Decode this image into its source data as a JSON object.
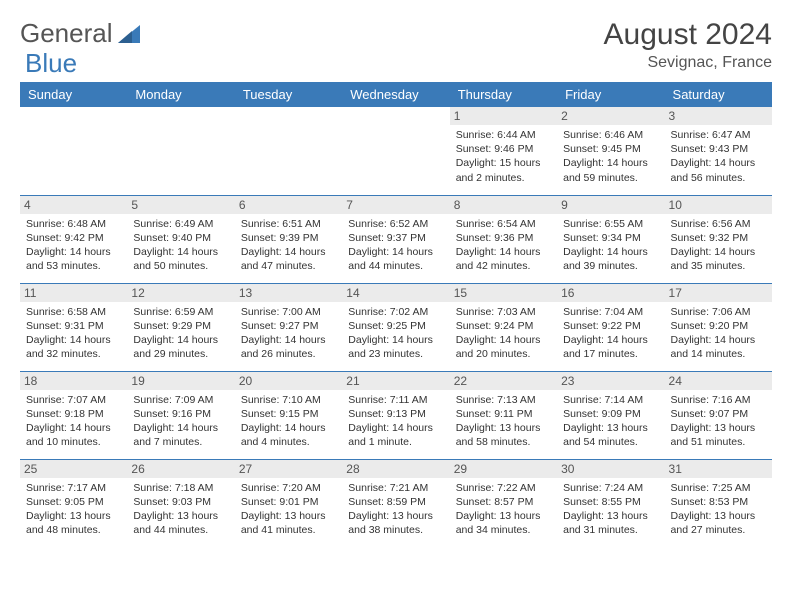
{
  "logo": {
    "text1": "General",
    "text2": "Blue"
  },
  "title": "August 2024",
  "location": "Sevignac, France",
  "colors": {
    "header_bg": "#3a7ab8",
    "header_text": "#ffffff",
    "daynum_bg": "#ebebeb",
    "border": "#3a7ab8",
    "title_color": "#444444",
    "body_text": "#333333"
  },
  "days": [
    "Sunday",
    "Monday",
    "Tuesday",
    "Wednesday",
    "Thursday",
    "Friday",
    "Saturday"
  ],
  "cells": [
    [
      null,
      null,
      null,
      null,
      {
        "n": "1",
        "sr": "6:44 AM",
        "ss": "9:46 PM",
        "dl": "15 hours and 2 minutes."
      },
      {
        "n": "2",
        "sr": "6:46 AM",
        "ss": "9:45 PM",
        "dl": "14 hours and 59 minutes."
      },
      {
        "n": "3",
        "sr": "6:47 AM",
        "ss": "9:43 PM",
        "dl": "14 hours and 56 minutes."
      }
    ],
    [
      {
        "n": "4",
        "sr": "6:48 AM",
        "ss": "9:42 PM",
        "dl": "14 hours and 53 minutes."
      },
      {
        "n": "5",
        "sr": "6:49 AM",
        "ss": "9:40 PM",
        "dl": "14 hours and 50 minutes."
      },
      {
        "n": "6",
        "sr": "6:51 AM",
        "ss": "9:39 PM",
        "dl": "14 hours and 47 minutes."
      },
      {
        "n": "7",
        "sr": "6:52 AM",
        "ss": "9:37 PM",
        "dl": "14 hours and 44 minutes."
      },
      {
        "n": "8",
        "sr": "6:54 AM",
        "ss": "9:36 PM",
        "dl": "14 hours and 42 minutes."
      },
      {
        "n": "9",
        "sr": "6:55 AM",
        "ss": "9:34 PM",
        "dl": "14 hours and 39 minutes."
      },
      {
        "n": "10",
        "sr": "6:56 AM",
        "ss": "9:32 PM",
        "dl": "14 hours and 35 minutes."
      }
    ],
    [
      {
        "n": "11",
        "sr": "6:58 AM",
        "ss": "9:31 PM",
        "dl": "14 hours and 32 minutes."
      },
      {
        "n": "12",
        "sr": "6:59 AM",
        "ss": "9:29 PM",
        "dl": "14 hours and 29 minutes."
      },
      {
        "n": "13",
        "sr": "7:00 AM",
        "ss": "9:27 PM",
        "dl": "14 hours and 26 minutes."
      },
      {
        "n": "14",
        "sr": "7:02 AM",
        "ss": "9:25 PM",
        "dl": "14 hours and 23 minutes."
      },
      {
        "n": "15",
        "sr": "7:03 AM",
        "ss": "9:24 PM",
        "dl": "14 hours and 20 minutes."
      },
      {
        "n": "16",
        "sr": "7:04 AM",
        "ss": "9:22 PM",
        "dl": "14 hours and 17 minutes."
      },
      {
        "n": "17",
        "sr": "7:06 AM",
        "ss": "9:20 PM",
        "dl": "14 hours and 14 minutes."
      }
    ],
    [
      {
        "n": "18",
        "sr": "7:07 AM",
        "ss": "9:18 PM",
        "dl": "14 hours and 10 minutes."
      },
      {
        "n": "19",
        "sr": "7:09 AM",
        "ss": "9:16 PM",
        "dl": "14 hours and 7 minutes."
      },
      {
        "n": "20",
        "sr": "7:10 AM",
        "ss": "9:15 PM",
        "dl": "14 hours and 4 minutes."
      },
      {
        "n": "21",
        "sr": "7:11 AM",
        "ss": "9:13 PM",
        "dl": "14 hours and 1 minute."
      },
      {
        "n": "22",
        "sr": "7:13 AM",
        "ss": "9:11 PM",
        "dl": "13 hours and 58 minutes."
      },
      {
        "n": "23",
        "sr": "7:14 AM",
        "ss": "9:09 PM",
        "dl": "13 hours and 54 minutes."
      },
      {
        "n": "24",
        "sr": "7:16 AM",
        "ss": "9:07 PM",
        "dl": "13 hours and 51 minutes."
      }
    ],
    [
      {
        "n": "25",
        "sr": "7:17 AM",
        "ss": "9:05 PM",
        "dl": "13 hours and 48 minutes."
      },
      {
        "n": "26",
        "sr": "7:18 AM",
        "ss": "9:03 PM",
        "dl": "13 hours and 44 minutes."
      },
      {
        "n": "27",
        "sr": "7:20 AM",
        "ss": "9:01 PM",
        "dl": "13 hours and 41 minutes."
      },
      {
        "n": "28",
        "sr": "7:21 AM",
        "ss": "8:59 PM",
        "dl": "13 hours and 38 minutes."
      },
      {
        "n": "29",
        "sr": "7:22 AM",
        "ss": "8:57 PM",
        "dl": "13 hours and 34 minutes."
      },
      {
        "n": "30",
        "sr": "7:24 AM",
        "ss": "8:55 PM",
        "dl": "13 hours and 31 minutes."
      },
      {
        "n": "31",
        "sr": "7:25 AM",
        "ss": "8:53 PM",
        "dl": "13 hours and 27 minutes."
      }
    ]
  ],
  "labels": {
    "sunrise": "Sunrise: ",
    "sunset": "Sunset: ",
    "daylight": "Daylight: "
  }
}
